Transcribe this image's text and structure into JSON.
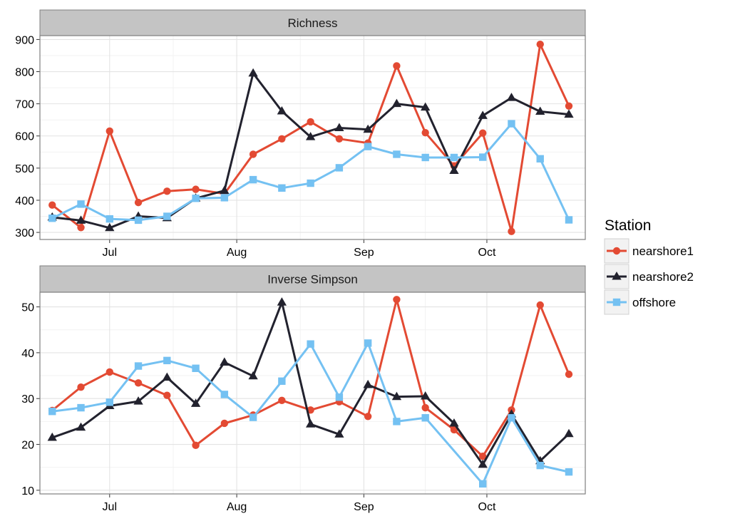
{
  "chart_data": {
    "type": "line",
    "x_dates": [
      "2014-06-17",
      "2014-06-24",
      "2014-07-01",
      "2014-07-08",
      "2014-07-15",
      "2014-07-22",
      "2014-07-29",
      "2014-08-05",
      "2014-08-12",
      "2014-08-19",
      "2014-08-26",
      "2014-09-02",
      "2014-09-09",
      "2014-09-16",
      "2014-09-23",
      "2014-09-30",
      "2014-10-07",
      "2014-10-14",
      "2014-10-21"
    ],
    "x_ticks": [
      {
        "date": "2014-07-01",
        "label": "Jul"
      },
      {
        "date": "2014-08-01",
        "label": "Aug"
      },
      {
        "date": "2014-09-01",
        "label": "Sep"
      },
      {
        "date": "2014-10-01",
        "label": "Oct"
      }
    ],
    "legend": {
      "title": "Station",
      "position": "right",
      "entries": [
        {
          "name": "nearshore1",
          "color": "#e34a33",
          "marker": "circle"
        },
        {
          "name": "nearshore2",
          "color": "#22222e",
          "marker": "triangle"
        },
        {
          "name": "offshore",
          "color": "#74c1f2",
          "marker": "square"
        }
      ]
    },
    "panels": [
      {
        "title": "Richness",
        "ylim": [
          278,
          912
        ],
        "yticks": [
          300,
          400,
          500,
          600,
          700,
          800,
          900
        ],
        "grid": true,
        "series": [
          {
            "name": "nearshore1",
            "values": [
              385,
              315,
              615,
              393,
              428,
              434,
              420,
              543,
              591,
              644,
              591,
              578,
              818,
              610,
              507,
              609,
              303,
              885,
              693
            ]
          },
          {
            "name": "nearshore2",
            "values": [
              347,
              337,
              314,
              350,
              345,
              406,
              430,
              795,
              677,
              597,
              625,
              620,
              700,
              689,
              492,
              663,
              719,
              676,
              667
            ]
          },
          {
            "name": "offshore",
            "values": [
              344,
              388,
              342,
              338,
              350,
              406,
              408,
              464,
              438,
              453,
              501,
              567,
              543,
              533,
              533,
              534,
              638,
              529,
              339
            ]
          }
        ]
      },
      {
        "title": "Inverse Simpson",
        "ylim": [
          9.2,
          53.2
        ],
        "yticks": [
          10,
          20,
          30,
          40,
          50
        ],
        "grid": true,
        "series": [
          {
            "name": "nearshore1",
            "values": [
              27.4,
              32.5,
              35.8,
              33.4,
              30.7,
              19.8,
              24.6,
              26.4,
              29.6,
              27.5,
              29.3,
              26.1,
              51.6,
              28.0,
              23.2,
              17.4,
              27.5,
              50.4,
              35.3
            ]
          },
          {
            "name": "nearshore2",
            "values": [
              21.5,
              23.7,
              28.4,
              29.4,
              34.6,
              28.9,
              37.9,
              34.9,
              51.0,
              24.4,
              22.2,
              33.0,
              30.4,
              30.5,
              24.6,
              15.6,
              26.6,
              16.4,
              22.3
            ]
          },
          {
            "name": "offshore",
            "values": [
              27.2,
              28.0,
              29.2,
              37.1,
              38.3,
              36.6,
              30.9,
              25.9,
              33.8,
              41.9,
              30.3,
              42.1,
              25.0,
              25.8,
              null,
              11.4,
              25.8,
              15.4,
              14.0
            ]
          }
        ]
      }
    ]
  }
}
